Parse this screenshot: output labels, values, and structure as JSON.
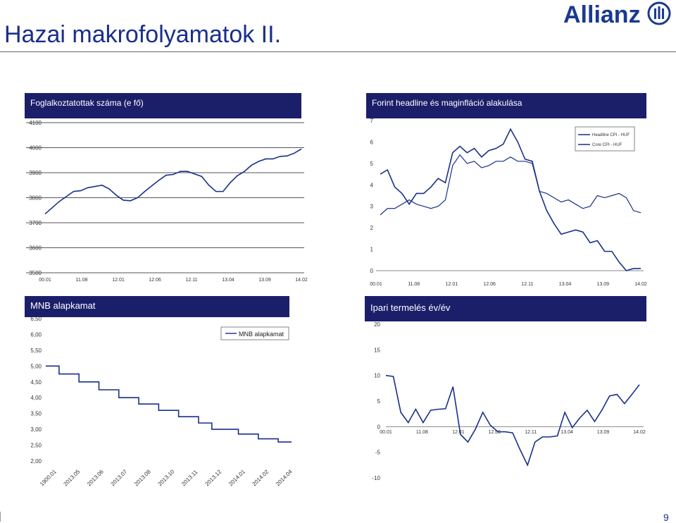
{
  "page": {
    "title": "Hazai makrofolyamatok II.",
    "logo": "Allianz",
    "page_number": "9"
  },
  "colors": {
    "header_bg": "#1b1f6a",
    "title": "#1a2f8a",
    "line": "#1a2f8a"
  },
  "chart_data": [
    {
      "id": "employment",
      "type": "line",
      "title": "Foglalkoztatottak száma  (e fő)",
      "ylim": [
        3500,
        4100
      ],
      "yticks": [
        "3500",
        "3600",
        "3700",
        "3800",
        "3900",
        "4000",
        "4100"
      ],
      "xticks": [
        "00.01",
        "11.08",
        "12.01",
        "12.06",
        "12.11",
        "13.04",
        "13.09",
        "14.02"
      ],
      "series": [
        {
          "name": "Foglalkoztatottak száma",
          "values": [
            3735,
            3760,
            3785,
            3805,
            3825,
            3828,
            3840,
            3845,
            3850,
            3835,
            3810,
            3790,
            3788,
            3800,
            3825,
            3848,
            3870,
            3890,
            3893,
            3905,
            3905,
            3895,
            3885,
            3850,
            3825,
            3825,
            3860,
            3888,
            3905,
            3930,
            3945,
            3955,
            3955,
            3965,
            3967,
            3978,
            3995
          ]
        }
      ]
    },
    {
      "id": "inflation",
      "type": "line",
      "title": "Forint headline és maginfláció alakulása",
      "ylim": [
        0,
        7
      ],
      "yticks": [
        "0",
        "1",
        "2",
        "3",
        "4",
        "5",
        "6",
        "7"
      ],
      "xticks": [
        "00.01",
        "11.08",
        "12.01",
        "12.06",
        "12.11",
        "13.04",
        "13.09",
        "14.02"
      ],
      "legend": "top-right",
      "series": [
        {
          "name": "Headline CPI - HUF",
          "values": [
            4.5,
            4.7,
            3.9,
            3.6,
            3.1,
            3.6,
            3.6,
            3.9,
            4.3,
            4.1,
            5.5,
            5.8,
            5.5,
            5.7,
            5.3,
            5.6,
            5.7,
            5.9,
            6.6,
            6.0,
            5.2,
            5.1,
            3.7,
            2.8,
            2.2,
            1.7,
            1.8,
            1.9,
            1.8,
            1.3,
            1.4,
            0.9,
            0.9,
            0.4,
            0.0,
            0.1,
            0.1
          ]
        },
        {
          "name": "Core CPI - HUF",
          "values": [
            2.6,
            2.9,
            2.9,
            3.1,
            3.3,
            3.1,
            3.0,
            2.9,
            3.0,
            3.3,
            4.9,
            5.4,
            5.0,
            5.1,
            4.8,
            4.9,
            5.1,
            5.1,
            5.3,
            5.1,
            5.1,
            5.0,
            3.7,
            3.6,
            3.4,
            3.2,
            3.3,
            3.1,
            2.9,
            3.0,
            3.5,
            3.4,
            3.5,
            3.6,
            3.4,
            2.8,
            2.7
          ]
        }
      ]
    },
    {
      "id": "base_rate",
      "type": "line",
      "title": "MNB alapkamat",
      "ylim": [
        2.0,
        6.5
      ],
      "yticks": [
        "2,00",
        "2,50",
        "3,00",
        "3,50",
        "4,00",
        "4,50",
        "5,00",
        "5,50",
        "6,00",
        "6,50"
      ],
      "xticks": [
        "1900.01",
        "2013.05",
        "2013.06",
        "2013.07",
        "2013.08",
        "2013.10",
        "2013.11",
        "2013.12",
        "2014.01",
        "2014.02",
        "2014.04"
      ],
      "legend": "top-right",
      "series": [
        {
          "name": "MNB alapkamat",
          "values": [
            5.0,
            5.0,
            4.75,
            4.75,
            4.75,
            4.5,
            4.5,
            4.5,
            4.25,
            4.25,
            4.25,
            4.0,
            4.0,
            4.0,
            3.8,
            3.8,
            3.8,
            3.6,
            3.6,
            3.6,
            3.4,
            3.4,
            3.4,
            3.2,
            3.2,
            3.0,
            3.0,
            3.0,
            3.0,
            2.85,
            2.85,
            2.85,
            2.7,
            2.7,
            2.7,
            2.6,
            2.6,
            2.6
          ]
        }
      ]
    },
    {
      "id": "industrial",
      "type": "line",
      "title": "Ipari termelés év/év",
      "ylim": [
        -10,
        20
      ],
      "yticks": [
        "-10",
        "-5",
        "0",
        "5",
        "10",
        "15",
        "20"
      ],
      "xticks": [
        "00.01",
        "11.08",
        "12.01",
        "12.06",
        "12.11",
        "13.04",
        "13.09",
        "14.02"
      ],
      "series": [
        {
          "name": "Ipari termelés év/év",
          "values": [
            10.0,
            9.8,
            2.8,
            0.8,
            3.4,
            0.8,
            3.2,
            3.4,
            3.5,
            7.8,
            -1.5,
            -3.0,
            -0.5,
            2.8,
            0.3,
            -1.0,
            -1.0,
            -1.2,
            -4.5,
            -7.5,
            -3.0,
            -2.0,
            -2.0,
            -1.8,
            2.8,
            -0.2,
            1.7,
            3.2,
            1.0,
            3.3,
            6.0,
            6.3,
            4.5,
            6.3,
            8.2
          ]
        }
      ]
    }
  ]
}
